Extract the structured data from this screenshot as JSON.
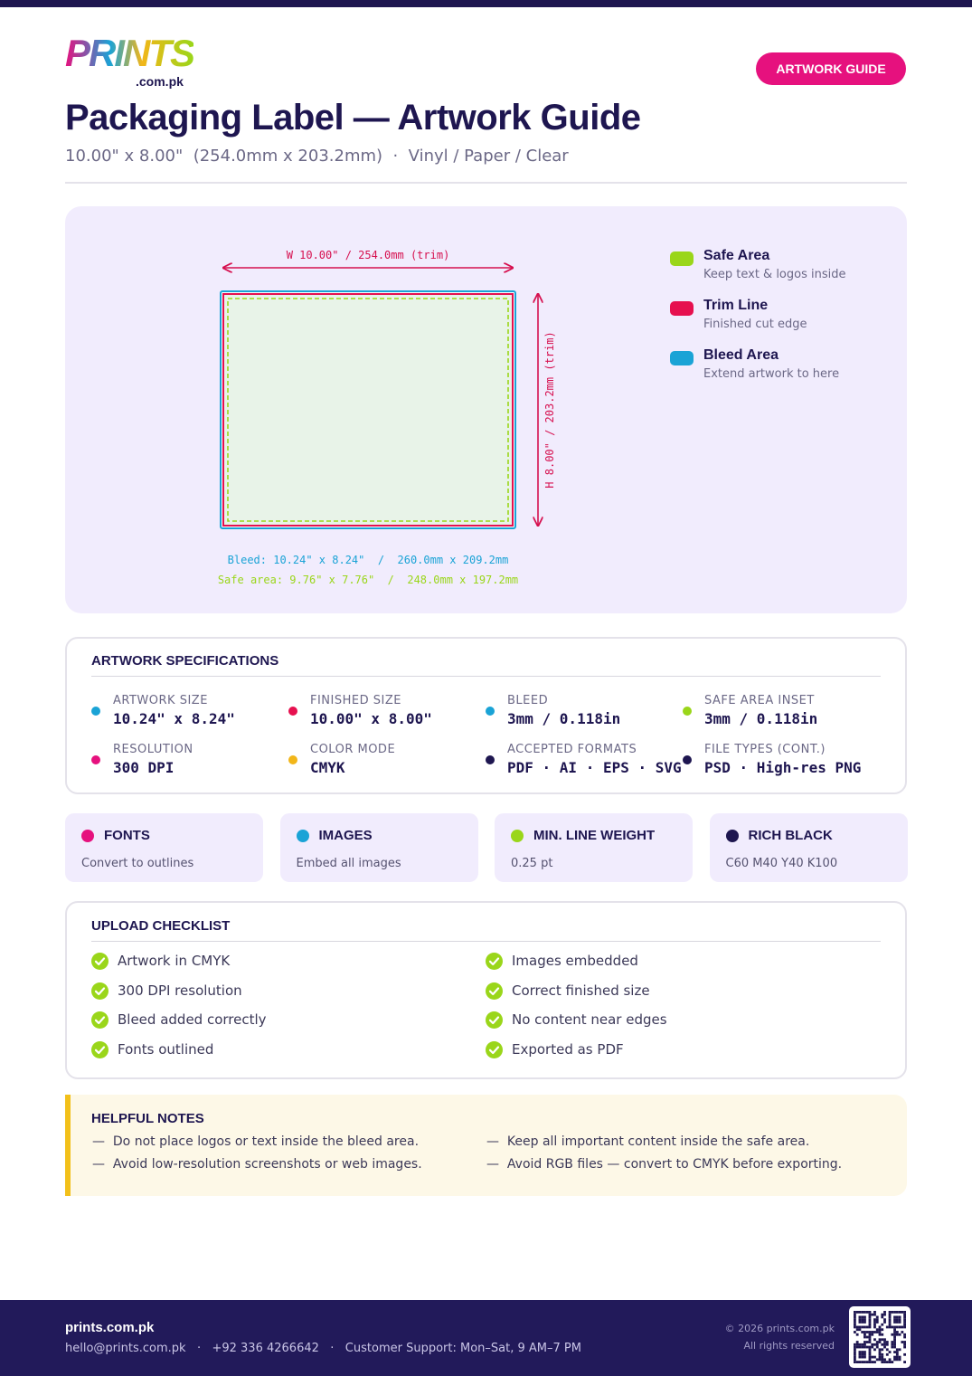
{
  "header": {
    "logo": "PRINTS",
    "logo_sub": ".com.pk",
    "badge": "ARTWORK GUIDE",
    "title": "Packaging Label — Artwork Guide",
    "subtitle": "10.00\" x 8.00\"  (254.0mm x 203.2mm)  ·  Vinyl / Paper / Clear"
  },
  "diagram": {
    "width_label": "W 10.00\" / 254.0mm (trim)",
    "height_label": "H 8.00\" / 203.2mm (trim)",
    "bleed_note": "Bleed: 10.24\" x 8.24\"  /  260.0mm x 209.2mm",
    "safe_note": "Safe area: 9.76\" x 7.76\"  /  248.0mm x 197.2mm",
    "legend": [
      {
        "title": "Safe Area",
        "desc": "Keep text & logos inside",
        "color": "#9ad61a"
      },
      {
        "title": "Trim Line",
        "desc": "Finished cut edge",
        "color": "#e6104f"
      },
      {
        "title": "Bleed Area",
        "desc": "Extend artwork to here",
        "color": "#1aa3d6"
      }
    ]
  },
  "specs": {
    "title": "ARTWORK SPECIFICATIONS",
    "items": [
      {
        "label": "ARTWORK SIZE",
        "value": "10.24\" x 8.24\"",
        "color": "#1aa3d6"
      },
      {
        "label": "FINISHED SIZE",
        "value": "10.00\" x 8.00\"",
        "color": "#e6104f"
      },
      {
        "label": "BLEED",
        "value": "3mm / 0.118in",
        "color": "#1aa3d6"
      },
      {
        "label": "SAFE AREA INSET",
        "value": "3mm / 0.118in",
        "color": "#9ad61a"
      },
      {
        "label": "RESOLUTION",
        "value": "300 DPI",
        "color": "#e6117e"
      },
      {
        "label": "COLOR MODE",
        "value": "CMYK",
        "color": "#f2b619"
      },
      {
        "label": "ACCEPTED FORMATS",
        "value": "PDF · AI · EPS · SVG",
        "color": "#1e1650"
      },
      {
        "label": "FILE TYPES (CONT.)",
        "value": "PSD · High-res PNG",
        "color": "#1e1650"
      }
    ]
  },
  "cards": [
    {
      "title": "FONTS",
      "text": "Convert to outlines",
      "color": "#e6117e"
    },
    {
      "title": "IMAGES",
      "text": "Embed all images",
      "color": "#1aa3d6"
    },
    {
      "title": "MIN. LINE WEIGHT",
      "text": "0.25 pt",
      "color": "#9ad61a"
    },
    {
      "title": "RICH BLACK",
      "text": "C60 M40 Y40 K100",
      "color": "#1e1650"
    }
  ],
  "checklist": {
    "title": "UPLOAD CHECKLIST",
    "items": [
      "Artwork in CMYK",
      "300 DPI resolution",
      "Bleed added correctly",
      "Fonts outlined",
      "Images embedded",
      "Correct finished size",
      "No content near edges",
      "Exported as PDF"
    ]
  },
  "notes": {
    "title": "HELPFUL NOTES",
    "items": [
      "—  Do not place logos or text inside the bleed area.",
      "—  Avoid low-resolution screenshots or web images.",
      "—  Keep all important content inside the safe area.",
      "—  Avoid RGB files — convert to CMYK before exporting."
    ]
  },
  "footer": {
    "brand": "prints.com.pk",
    "contact": "hello@prints.com.pk   ·   +92 336 4266642   ·   Customer Support: Mon–Sat, 9 AM–7 PM",
    "copyright": "© 2026 prints.com.pk",
    "rights": "All rights reserved"
  }
}
